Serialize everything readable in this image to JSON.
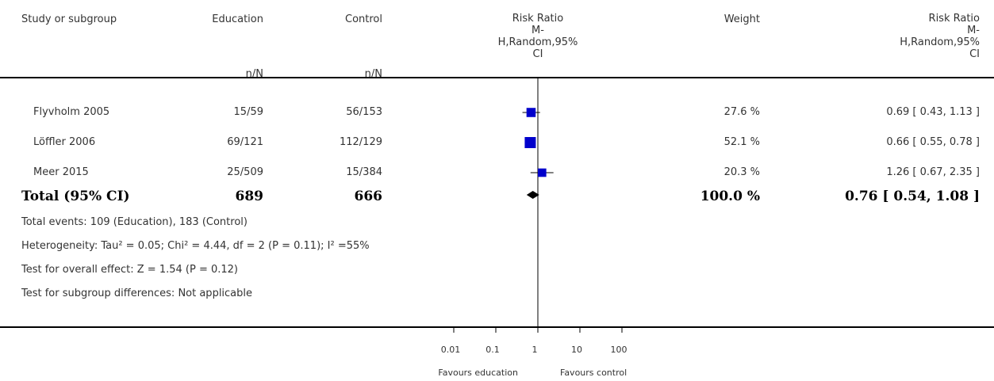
{
  "header": {
    "study": "Study or subgroup",
    "group1": "Education",
    "group2": "Control",
    "nN1": "n/N",
    "nN2": "n/N",
    "rr_line1": "Risk Ratio",
    "rr_line2": "M-",
    "rr_line3": "H,Random,95%",
    "rr_line4": "CI",
    "weight": "Weight",
    "rr2_line1": "Risk Ratio",
    "rr2_line2": "M-",
    "rr2_line3": "H,Random,95%",
    "rr2_line4": "CI"
  },
  "studies": [
    {
      "name": "Flyvholm 2005",
      "edu": "15/59",
      "ctrl": "56/153",
      "weight": "27.6 %",
      "ci_text": "0.69 [ 0.43, 1.13 ]"
    },
    {
      "name": "Löffler 2006",
      "edu": "69/121",
      "ctrl": "112/129",
      "weight": "52.1 %",
      "ci_text": "0.66 [ 0.55, 0.78 ]"
    },
    {
      "name": "Meer 2015",
      "edu": "25/509",
      "ctrl": "15/384",
      "weight": "20.3 %",
      "ci_text": "1.26 [ 0.67, 2.35 ]"
    }
  ],
  "total": {
    "label": "Total (95% CI)",
    "edu": "689",
    "ctrl": "666",
    "weight": "100.0 %",
    "ci_text": "0.76 [ 0.54, 1.08 ]"
  },
  "footnotes": {
    "events": "Total events: 109 (Education), 183 (Control)",
    "heterogeneity": "Heterogeneity: Tau² = 0.05; Chi² = 4.44, df = 2 (P = 0.11); I² =55%",
    "overall": "Test for overall effect: Z = 1.54 (P = 0.12)",
    "subgroup": "Test for subgroup differences: Not applicable"
  },
  "axis": {
    "ticks": [
      "0.01",
      "0.1",
      "1",
      "10",
      "100"
    ],
    "left_label": "Favours education",
    "right_label": "Favours control"
  },
  "chart_data": {
    "type": "scatter",
    "scale": "log",
    "xlim": [
      0.01,
      100
    ],
    "ticks": [
      0.01,
      0.1,
      1,
      10,
      100
    ],
    "studies": [
      {
        "name": "Flyvholm 2005",
        "rr": 0.69,
        "lower": 0.43,
        "upper": 1.13,
        "weight": 27.6
      },
      {
        "name": "Löffler 2006",
        "rr": 0.66,
        "lower": 0.55,
        "upper": 0.78,
        "weight": 52.1
      },
      {
        "name": "Meer 2015",
        "rr": 1.26,
        "lower": 0.67,
        "upper": 2.35,
        "weight": 20.3
      }
    ],
    "pooled": {
      "rr": 0.76,
      "lower": 0.54,
      "upper": 1.08
    },
    "colors": {
      "box": "#0000cc",
      "line": "#000000",
      "diamond": "#000000"
    }
  }
}
